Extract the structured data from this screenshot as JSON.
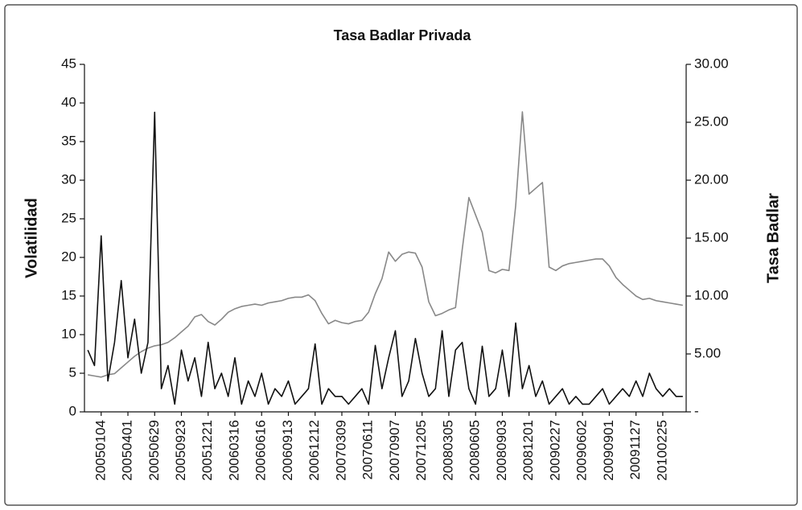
{
  "chart_data": {
    "type": "line",
    "title": "Tasa Badlar Privada",
    "y_label": "Volatilidad",
    "y2_label": "Tasa Badlar",
    "categories": [
      null,
      null,
      "20050104",
      null,
      null,
      null,
      "20050401",
      null,
      null,
      null,
      "20050629",
      null,
      null,
      null,
      "20050923",
      null,
      null,
      null,
      "20051221",
      null,
      null,
      null,
      "20060316",
      null,
      null,
      null,
      "20060616",
      null,
      null,
      null,
      "20060913",
      null,
      null,
      null,
      "20061212",
      null,
      null,
      null,
      "20070309",
      null,
      null,
      null,
      "20070611",
      null,
      null,
      null,
      "20070907",
      null,
      null,
      null,
      "20071205",
      null,
      null,
      null,
      "20080305",
      null,
      null,
      null,
      "20080605",
      null,
      null,
      null,
      "20080903",
      null,
      null,
      null,
      "20081201",
      null,
      null,
      null,
      "20090227",
      null,
      null,
      null,
      "20090602",
      null,
      null,
      null,
      "20090901",
      null,
      null,
      null,
      "20091127",
      null,
      null,
      null,
      "20100225",
      null,
      null,
      null
    ],
    "series": [
      {
        "color": "#111111",
        "values": [
          8,
          6,
          22.8,
          4,
          9,
          17,
          7,
          12,
          5,
          9,
          38.8,
          3,
          6,
          1,
          8,
          4,
          7,
          2,
          9,
          3,
          5,
          2,
          7,
          1,
          4,
          2,
          5,
          1,
          3,
          2,
          4,
          1,
          2,
          3,
          8.8,
          1,
          3,
          2,
          2,
          1,
          2,
          3,
          1,
          8.6,
          3,
          7,
          10.5,
          2,
          4,
          9.5,
          5,
          2,
          3,
          10.5,
          2,
          8,
          9,
          3,
          1,
          8.5,
          2,
          3,
          8,
          2,
          11.5,
          3,
          6,
          2,
          4,
          1,
          2,
          3,
          1,
          2,
          1,
          1,
          2,
          3,
          1,
          2,
          3,
          2,
          4,
          2,
          5,
          3,
          2,
          3,
          2,
          2
        ]
      },
      {
        "color": "#888888",
        "axis": "y2",
        "values": [
          3.2,
          3.1,
          3.0,
          3.2,
          3.3,
          3.8,
          4.3,
          4.8,
          5.2,
          5.5,
          5.7,
          5.8,
          6.0,
          6.4,
          6.9,
          7.4,
          8.2,
          8.4,
          7.8,
          7.5,
          8.0,
          8.6,
          8.9,
          9.1,
          9.2,
          9.3,
          9.2,
          9.4,
          9.5,
          9.6,
          9.8,
          9.9,
          9.9,
          10.1,
          9.6,
          8.5,
          7.6,
          7.9,
          7.7,
          7.6,
          7.8,
          7.9,
          8.6,
          10.2,
          11.5,
          13.8,
          13.0,
          13.6,
          13.8,
          13.7,
          12.5,
          9.5,
          8.3,
          8.5,
          8.8,
          9.0,
          14.0,
          18.5,
          17.0,
          15.5,
          12.2,
          12.0,
          12.3,
          12.2,
          17.8,
          25.9,
          18.8,
          19.3,
          19.8,
          12.5,
          12.2,
          12.6,
          12.8,
          12.9,
          13.0,
          13.1,
          13.2,
          13.2,
          12.6,
          11.6,
          11.0,
          10.5,
          10.0,
          9.7,
          9.8,
          9.6,
          9.5,
          9.4,
          9.3,
          9.2
        ]
      }
    ],
    "ylim": [
      0,
      45
    ],
    "yticks": [
      0,
      5,
      10,
      15,
      20,
      25,
      30,
      35,
      40,
      45
    ],
    "y2lim": [
      0,
      30
    ],
    "y2ticks": [
      {
        "value": 0,
        "label": "-"
      },
      {
        "value": 5,
        "label": "5.00"
      },
      {
        "value": 10,
        "label": "10.00"
      },
      {
        "value": 15,
        "label": "15.00"
      },
      {
        "value": 20,
        "label": "20.00"
      },
      {
        "value": 25,
        "label": "25.00"
      },
      {
        "value": 30,
        "label": "30.00"
      }
    ],
    "grid": false
  }
}
